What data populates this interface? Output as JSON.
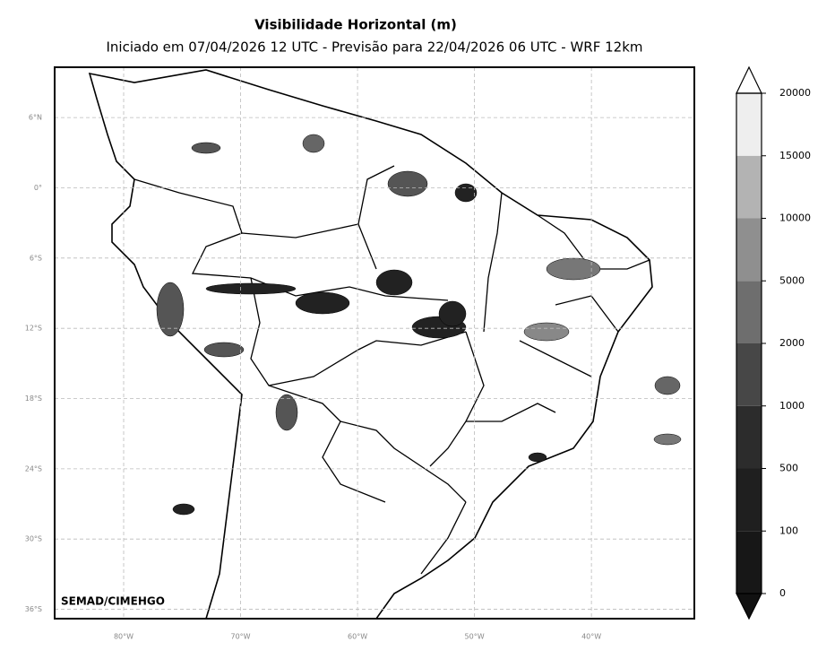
{
  "title": "Visibilidade Horizontal (m)",
  "subtitle": "Iniciado em 07/04/2026 12 UTC - Previsão para 22/04/2026 06 UTC - WRF 12km",
  "credit": "SEMAD/CIMEHGO",
  "map": {
    "xlim": [
      -85.9,
      -31.2
    ],
    "ylim": [
      -36.8,
      10.3
    ],
    "grid": true,
    "yticks": [
      {
        "value": 6,
        "label": "6°N"
      },
      {
        "value": 0,
        "label": "0°"
      },
      {
        "value": -6,
        "label": "6°S"
      },
      {
        "value": -12,
        "label": "12°S"
      },
      {
        "value": -18,
        "label": "18°S"
      },
      {
        "value": -24,
        "label": "24°S"
      },
      {
        "value": -30,
        "label": "30°S"
      },
      {
        "value": -36,
        "label": "36°S"
      }
    ],
    "xticks": [
      {
        "value": -80,
        "label": "80°W"
      },
      {
        "value": -70,
        "label": "70°W"
      },
      {
        "value": -60,
        "label": "60°W"
      },
      {
        "value": -50,
        "label": "50°W"
      },
      {
        "value": -40,
        "label": "40°W"
      }
    ]
  },
  "colorbar": {
    "levels": [
      0,
      100,
      500,
      1000,
      2000,
      5000,
      10000,
      15000,
      20000
    ],
    "colors": [
      "#171717",
      "#1f1f1f",
      "#2c2c2c",
      "#474747",
      "#6e6e6e",
      "#8f8f8f",
      "#b3b3b3",
      "#eeeeee"
    ],
    "under_color": "#111111",
    "over_color": "#ffffff"
  }
}
